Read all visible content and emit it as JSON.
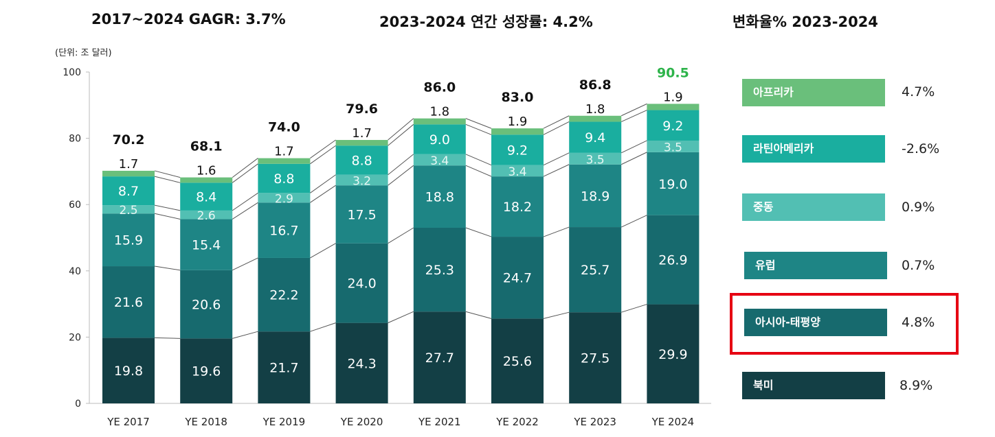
{
  "headers": {
    "cagr": "2017~2024 GAGR: 3.7%",
    "annual_growth": "2023-2024 연간 성장률: 4.2%",
    "change_rate": "변화율% 2023-2024"
  },
  "unit": "(단위: 조 달러)",
  "chart_data": {
    "type": "bar",
    "stacked": true,
    "categories": [
      "YE 2017",
      "YE 2018",
      "YE 2019",
      "YE 2020",
      "YE 2021",
      "YE 2022",
      "YE 2023",
      "YE 2024"
    ],
    "ylim": [
      0,
      100
    ],
    "yticks": [
      0,
      20,
      40,
      60,
      80,
      100
    ],
    "grid": false,
    "series": [
      {
        "name": "북미",
        "color": "#133f45",
        "values": [
          19.8,
          19.6,
          21.7,
          24.3,
          27.7,
          25.6,
          27.5,
          29.9
        ]
      },
      {
        "name": "아시아-태평양",
        "color": "#176a6e",
        "values": [
          21.6,
          20.6,
          22.2,
          24.0,
          25.3,
          24.7,
          25.7,
          26.9
        ]
      },
      {
        "name": "유럽",
        "color": "#1e8585",
        "values": [
          15.9,
          15.4,
          16.7,
          17.5,
          18.8,
          18.2,
          18.9,
          19.0
        ]
      },
      {
        "name": "중동",
        "color": "#52bfb3",
        "values": [
          2.5,
          2.6,
          2.9,
          3.2,
          3.4,
          3.4,
          3.5,
          3.5
        ]
      },
      {
        "name": "라틴아메리카",
        "color": "#1aae9f",
        "values": [
          8.7,
          8.4,
          8.8,
          8.8,
          9.0,
          9.2,
          9.4,
          9.2
        ]
      },
      {
        "name": "아프리카",
        "color": "#6abf7b",
        "values": [
          1.7,
          1.6,
          1.7,
          1.7,
          1.8,
          1.9,
          1.8,
          1.9
        ]
      }
    ],
    "totals": [
      "70.2",
      "68.1",
      "74.0",
      "79.6",
      "86.0",
      "83.0",
      "86.8",
      "90.5"
    ],
    "highlight_total_color": "#2db34a"
  },
  "legend": [
    {
      "label": "아프리카",
      "change": "4.7%",
      "color": "#6abf7b"
    },
    {
      "label": "라틴아메리카",
      "change": "-2.6%",
      "color": "#1aae9f"
    },
    {
      "label": "중동",
      "change": "0.9%",
      "color": "#52bfb3"
    },
    {
      "label": "유럽",
      "change": "0.7%",
      "color": "#1e8585"
    },
    {
      "label": "아시아-태평양",
      "change": "4.8%",
      "color": "#176a6e",
      "highlighted": true
    },
    {
      "label": "북미",
      "change": "8.9%",
      "color": "#133f45"
    }
  ]
}
